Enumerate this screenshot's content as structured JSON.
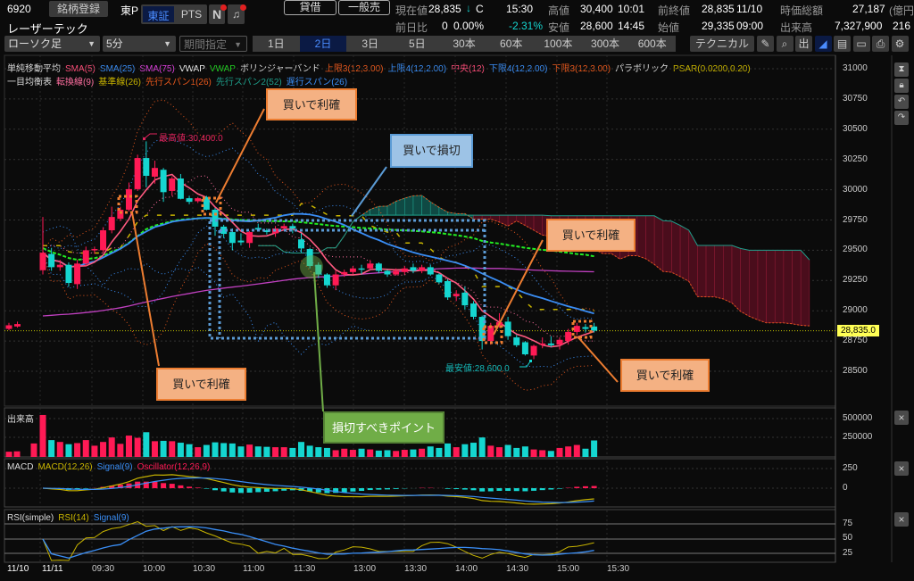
{
  "header": {
    "code": "6920",
    "register_button": "銘柄登録",
    "market": "東P",
    "exchange_tabs": [
      {
        "label": "東証",
        "active": true
      },
      {
        "label": "PTS",
        "active": false
      }
    ],
    "news_icon": "N",
    "name": "レーザーテック",
    "margin_button": "貸借",
    "general_sell_button": "一般売",
    "quote": {
      "current_label": "現在値",
      "current": "28,835",
      "current_arrow": "↓",
      "current_flag": "C",
      "current_time": "15:30",
      "change_label": "前日比",
      "change": "0",
      "change_pct": "0.00%",
      "open_change_pct": "-2.31%",
      "high_label": "高値",
      "high": "30,400",
      "high_time": "10:01",
      "low_label": "安値",
      "low": "28,600",
      "low_time": "14:45",
      "prev_close_label": "前終値",
      "prev_close": "28,835",
      "prev_close_date": "11/10",
      "open_label": "始値",
      "open": "29,335",
      "open_time": "09:00",
      "market_cap_label": "時価総額",
      "market_cap": "27,187",
      "market_cap_unit": "(億円",
      "volume_label": "出来高",
      "volume": "7,327,900",
      "volume_extra": "216"
    }
  },
  "toolbar": {
    "chart_type": "ローソク足",
    "interval": "5分",
    "period": "期間指定",
    "periods": [
      {
        "label": "1日",
        "active": false
      },
      {
        "label": "2日",
        "active": true
      },
      {
        "label": "3日",
        "active": false
      },
      {
        "label": "5日",
        "active": false
      },
      {
        "label": "30本",
        "active": false
      },
      {
        "label": "60本",
        "active": false
      },
      {
        "label": "100本",
        "active": false
      },
      {
        "label": "300本",
        "active": false
      },
      {
        "label": "600本",
        "active": false
      }
    ],
    "technical_button": "テクニカル",
    "icons": [
      "pencil-icon",
      "zoom-icon",
      "volume-icon",
      "area-chart-icon",
      "memo-icon",
      "folder-icon",
      "print-icon",
      "gear-icon"
    ],
    "icon_glyphs": [
      "✎",
      "⌕",
      "出",
      "◢",
      "▤",
      "▭",
      "⎙",
      "⚙"
    ]
  },
  "legend": {
    "row1": [
      {
        "text": "単純移動平均",
        "color": "#dddddd"
      },
      {
        "text": "SMA(5)",
        "color": "#ff4d79"
      },
      {
        "text": "SMA(25)",
        "color": "#3a8ef6"
      },
      {
        "text": "SMA(75)",
        "color": "#e040e0"
      },
      {
        "text": "VWAP",
        "color": "#eeeeee"
      },
      {
        "text": "VWAP",
        "color": "#22cc22"
      },
      {
        "text": "ボリンジャーバンド",
        "color": "#dddddd"
      },
      {
        "text": "上限3(12,3.00)",
        "color": "#e8581c"
      },
      {
        "text": "上限4(12,2.00)",
        "color": "#3a8ef6"
      },
      {
        "text": "中央(12)",
        "color": "#ff4d79"
      },
      {
        "text": "下限4(12,2.00)",
        "color": "#3a8ef6"
      },
      {
        "text": "下限3(12,3.00)",
        "color": "#e8581c"
      },
      {
        "text": "パラボリック",
        "color": "#dddddd"
      },
      {
        "text": "PSAR(0.0200,0.20)",
        "color": "#c8b400"
      }
    ],
    "row2": [
      {
        "text": "一目均衡表",
        "color": "#dddddd"
      },
      {
        "text": "転換線(9)",
        "color": "#ff6fa0"
      },
      {
        "text": "基準線(26)",
        "color": "#c8b400"
      },
      {
        "text": "先行スパン1(26)",
        "color": "#e8581c"
      },
      {
        "text": "先行スパン2(52)",
        "color": "#1e9e8a"
      },
      {
        "text": "遅行スパン(26)",
        "color": "#3a8ef6"
      }
    ]
  },
  "panels": {
    "volume": {
      "title": "出来高",
      "ticks": [
        "500000",
        "250000"
      ]
    },
    "macd": {
      "parts": [
        {
          "text": "MACD",
          "color": "#dddddd"
        },
        {
          "text": "MACD(12,26)",
          "color": "#c8b400"
        },
        {
          "text": "Signal(9)",
          "color": "#3a8ef6"
        },
        {
          "text": "Oscillator(12,26,9)",
          "color": "#ff1a55"
        }
      ],
      "ticks": [
        "250",
        "0"
      ]
    },
    "rsi": {
      "parts": [
        {
          "text": "RSI(simple)",
          "color": "#dddddd"
        },
        {
          "text": "RSI(14)",
          "color": "#c8b400"
        },
        {
          "text": "Signal(9)",
          "color": "#3a8ef6"
        }
      ],
      "ticks": [
        "75",
        "50",
        "25"
      ]
    },
    "close_glyph": "×"
  },
  "annotations": {
    "buy_take_profit_1": "買いで利確",
    "buy_stop_loss": "買いで損切",
    "buy_take_profit_2": "買いで利確",
    "buy_take_profit_3": "買いで利確",
    "buy_take_profit_4": "買いで利確",
    "stop_loss_point": "損切すべきポイント",
    "high_marker": "最高値:30,400.0",
    "low_marker": "最安値:28,600.0"
  },
  "colors": {
    "up": "#ff1a55",
    "down": "#15d6d0",
    "current_price": "#ffff55",
    "accent": "#4a8cff"
  },
  "chart_data": {
    "type": "candlestick",
    "price_axis": {
      "ticks": [
        31000,
        30750,
        30500,
        30250,
        30000,
        29750,
        29500,
        29250,
        29000,
        28750,
        28500
      ],
      "range": [
        28400,
        31100
      ]
    },
    "current_price_label": "28,835.0",
    "current_price": 28835,
    "time_labels": [
      "11/10",
      "11/11",
      "09:30",
      "10:00",
      "10:30",
      "11:00",
      "11:30",
      "13:00",
      "13:30",
      "14:00",
      "14:30",
      "15:00",
      "15:30"
    ],
    "grid": true,
    "prev_day_candles": [
      [
        28850,
        28900,
        28840,
        28880
      ],
      [
        28870,
        28910,
        28860,
        28890
      ]
    ],
    "prev_day_volume": [
      70000,
      75000,
      180000
    ],
    "candles_ohlc": [
      [
        29335,
        29775,
        29300,
        29480
      ],
      [
        29470,
        29520,
        29330,
        29360
      ],
      [
        29360,
        29420,
        29330,
        29380
      ],
      [
        29380,
        29400,
        29200,
        29230
      ],
      [
        29220,
        29420,
        29180,
        29390
      ],
      [
        29390,
        29530,
        29370,
        29500
      ],
      [
        29500,
        29530,
        29470,
        29510
      ],
      [
        29500,
        29690,
        29480,
        29665
      ],
      [
        29665,
        29860,
        29640,
        29775
      ],
      [
        29760,
        29860,
        29740,
        29835
      ],
      [
        29835,
        30060,
        29820,
        30005
      ],
      [
        30005,
        30290,
        29990,
        30262
      ],
      [
        30262,
        30400,
        30020,
        30115
      ],
      [
        30108,
        30240,
        30050,
        30180
      ],
      [
        30165,
        30180,
        29900,
        29980
      ],
      [
        29990,
        30110,
        29950,
        30093
      ],
      [
        30093,
        30130,
        29920,
        29925
      ],
      [
        29930,
        29950,
        29880,
        29900
      ],
      [
        29905,
        29940,
        29890,
        29930
      ],
      [
        29940,
        29950,
        29830,
        29835
      ],
      [
        29835,
        29850,
        29620,
        29695
      ],
      [
        29695,
        29710,
        29600,
        29635
      ],
      [
        29650,
        29680,
        29500,
        29560
      ],
      [
        29580,
        29640,
        29540,
        29565
      ],
      [
        29560,
        29660,
        29520,
        29650
      ],
      [
        29685,
        29720,
        29660,
        29670
      ],
      [
        29665,
        29680,
        29630,
        29650
      ],
      [
        29640,
        29700,
        29610,
        29680
      ],
      [
        29680,
        29720,
        29660,
        29700
      ],
      [
        29700,
        29720,
        29640,
        29680
      ],
      [
        29590,
        29640,
        29480,
        29515
      ],
      [
        29510,
        29520,
        29350,
        29370
      ],
      [
        29380,
        29400,
        29270,
        29300
      ],
      [
        29300,
        29310,
        29190,
        29210
      ],
      [
        29210,
        29330,
        29170,
        29300
      ],
      [
        29300,
        29340,
        29280,
        29320
      ],
      [
        29320,
        29370,
        29300,
        29350
      ],
      [
        29350,
        29380,
        29300,
        29340
      ],
      [
        29350,
        29420,
        29340,
        29390
      ],
      [
        29390,
        29400,
        29310,
        29330
      ],
      [
        29330,
        29340,
        29280,
        29300
      ],
      [
        29300,
        29350,
        29290,
        29330
      ],
      [
        29320,
        29370,
        29300,
        29350
      ],
      [
        29360,
        29390,
        29310,
        29330
      ],
      [
        29330,
        29380,
        29310,
        29360
      ],
      [
        29360,
        29380,
        29290,
        29300
      ],
      [
        29300,
        29310,
        29220,
        29235
      ],
      [
        29245,
        29260,
        29090,
        29110
      ],
      [
        29120,
        29170,
        29080,
        29140
      ],
      [
        29150,
        29200,
        29010,
        29045
      ],
      [
        29060,
        29080,
        28930,
        28950
      ],
      [
        28950,
        28960,
        28680,
        28750
      ],
      [
        28750,
        28900,
        28720,
        28875
      ],
      [
        28880,
        28980,
        28860,
        28905
      ],
      [
        28910,
        28950,
        28760,
        28790
      ],
      [
        28780,
        28800,
        28700,
        28715
      ],
      [
        28740,
        28750,
        28630,
        28640
      ],
      [
        28630,
        28720,
        28600,
        28710
      ],
      [
        28720,
        28780,
        28690,
        28730
      ],
      [
        28730,
        28790,
        28700,
        28715
      ],
      [
        28720,
        28780,
        28680,
        28760
      ],
      [
        28750,
        28850,
        28720,
        28825
      ],
      [
        28825,
        28900,
        28800,
        28875
      ],
      [
        28865,
        28890,
        28820,
        28850
      ],
      [
        28870,
        28900,
        28820,
        28835
      ]
    ],
    "volume": [
      560000,
      225000,
      200000,
      170000,
      185000,
      225000,
      150000,
      200000,
      260000,
      175000,
      285000,
      255000,
      330000,
      210000,
      215000,
      210000,
      190000,
      170000,
      130000,
      160000,
      195000,
      185000,
      180000,
      140000,
      165000,
      140000,
      135000,
      130000,
      130000,
      120000,
      200000,
      150000,
      130000,
      120000,
      90000,
      110000,
      95000,
      110000,
      100000,
      85000,
      90000,
      80000,
      95000,
      100000,
      110000,
      140000,
      120000,
      180000,
      130000,
      170000,
      190000,
      260000,
      150000,
      130000,
      160000,
      120000,
      140000,
      100000,
      90000,
      80000,
      120000,
      140000,
      160000,
      110000,
      220000
    ],
    "volume_axis": {
      "ticks": [
        500000,
        250000
      ]
    },
    "macd_axis": {
      "ticks": [
        250,
        0
      ]
    },
    "rsi_axis": {
      "ticks": [
        75,
        50,
        25
      ]
    }
  }
}
